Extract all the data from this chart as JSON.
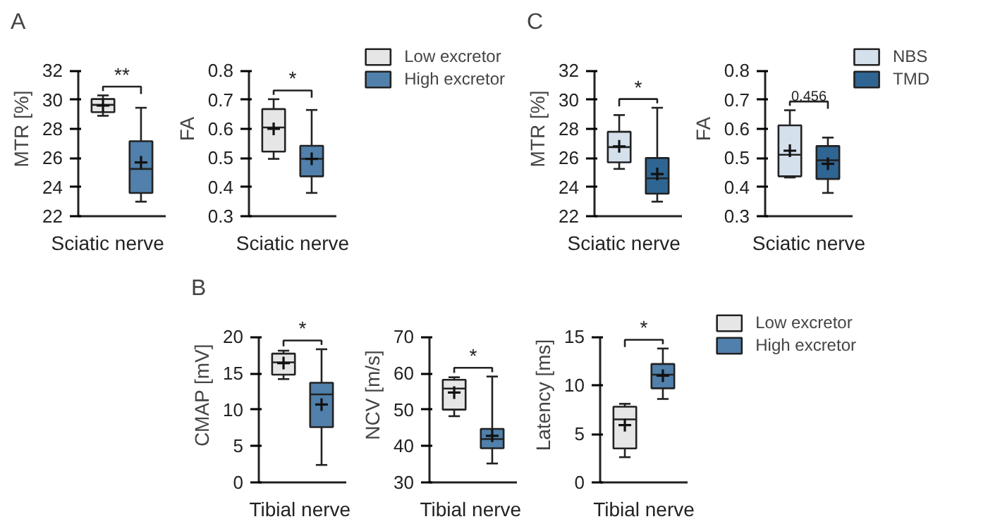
{
  "chart_data": [
    {
      "type": "box",
      "ylabel": "MTR [%]",
      "categories": [
        "Sciatic nerve"
      ],
      "ylim": [
        22,
        32
      ],
      "yticks": [
        22,
        24,
        26,
        28,
        30,
        32
      ],
      "grid": false,
      "annotations": [
        "A",
        "**"
      ],
      "series": [
        {
          "color": "#e6e6e6",
          "boxes": [
            {
              "low": 28.9,
              "q1": 29.15,
              "median": 29.65,
              "q3": 30.05,
              "high": 30.3,
              "mean": 29.6
            }
          ]
        },
        {
          "color": "#5080ab",
          "boxes": [
            {
              "low": 23.0,
              "q1": 23.6,
              "median": 25.25,
              "q3": 27.15,
              "high": 29.45,
              "mean": 25.7
            }
          ]
        }
      ]
    },
    {
      "type": "box",
      "ylabel": "FA",
      "categories": [
        "Sciatic nerve"
      ],
      "ylim": [
        0.3,
        0.8
      ],
      "yticks": [
        0.3,
        0.4,
        0.5,
        0.6,
        0.7,
        0.8
      ],
      "grid": false,
      "legend": "right",
      "annotations": [
        "*"
      ],
      "series": [
        {
          "name": "Low excretor",
          "color": "#e6e6e6",
          "boxes": [
            {
              "low": 0.497,
              "q1": 0.522,
              "median": 0.605,
              "q3": 0.668,
              "high": 0.702,
              "mean": 0.6
            }
          ]
        },
        {
          "name": "High excretor",
          "color": "#5080ab",
          "boxes": [
            {
              "low": 0.38,
              "q1": 0.437,
              "median": 0.497,
              "q3": 0.542,
              "high": 0.665,
              "mean": 0.497
            }
          ]
        }
      ]
    },
    {
      "type": "box",
      "ylabel": "MTR [%]",
      "categories": [
        "Sciatic nerve"
      ],
      "ylim": [
        22,
        32
      ],
      "yticks": [
        22,
        24,
        26,
        28,
        30,
        32
      ],
      "grid": false,
      "annotations": [
        "C",
        "*"
      ],
      "series": [
        {
          "color": "#d4e0ec",
          "boxes": [
            {
              "low": 25.25,
              "q1": 25.7,
              "median": 26.75,
              "q3": 27.8,
              "high": 28.95,
              "mean": 26.8
            }
          ]
        },
        {
          "color": "#2f6592",
          "boxes": [
            {
              "low": 23.0,
              "q1": 23.55,
              "median": 24.6,
              "q3": 26.0,
              "high": 29.45,
              "mean": 24.9
            }
          ]
        }
      ]
    },
    {
      "type": "box",
      "ylabel": "FA",
      "categories": [
        "Sciatic nerve"
      ],
      "ylim": [
        0.3,
        0.8
      ],
      "yticks": [
        0.3,
        0.4,
        0.5,
        0.6,
        0.7,
        0.8
      ],
      "grid": false,
      "legend": "right",
      "annotations": [
        "0.456"
      ],
      "series": [
        {
          "name": "NBS",
          "color": "#d4e0ec",
          "boxes": [
            {
              "low": 0.433,
              "q1": 0.437,
              "median": 0.511,
              "q3": 0.612,
              "high": 0.664,
              "mean": 0.525
            }
          ]
        },
        {
          "name": "TMD",
          "color": "#2f6592",
          "boxes": [
            {
              "low": 0.38,
              "q1": 0.428,
              "median": 0.492,
              "q3": 0.541,
              "high": 0.57,
              "mean": 0.48
            }
          ]
        }
      ]
    },
    {
      "type": "box",
      "ylabel": "CMAP [mV]",
      "categories": [
        "Tibial nerve"
      ],
      "ylim": [
        0,
        20
      ],
      "yticks": [
        0,
        5,
        10,
        15,
        20
      ],
      "grid": false,
      "annotations": [
        "B",
        "*"
      ],
      "series": [
        {
          "color": "#e6e6e6",
          "boxes": [
            {
              "low": 14.2,
              "q1": 14.8,
              "median": 16.5,
              "q3": 17.7,
              "high": 18.1,
              "mean": 16.4
            }
          ]
        },
        {
          "color": "#5080ab",
          "boxes": [
            {
              "low": 2.4,
              "q1": 7.6,
              "median": 12.1,
              "q3": 13.7,
              "high": 18.3,
              "mean": 10.7
            }
          ]
        }
      ]
    },
    {
      "type": "box",
      "ylabel": "NCV [m/s]",
      "categories": [
        "Tibial nerve"
      ],
      "ylim": [
        30,
        70
      ],
      "yticks": [
        30,
        40,
        50,
        60,
        70
      ],
      "grid": false,
      "annotations": [
        "*"
      ],
      "series": [
        {
          "color": "#e6e6e6",
          "boxes": [
            {
              "low": 48.2,
              "q1": 50.0,
              "median": 55.8,
              "q3": 58.2,
              "high": 58.9,
              "mean": 54.7
            }
          ]
        },
        {
          "color": "#5080ab",
          "boxes": [
            {
              "low": 35.2,
              "q1": 39.4,
              "median": 41.9,
              "q3": 44.7,
              "high": 59.1,
              "mean": 42.8
            }
          ]
        }
      ]
    },
    {
      "type": "box",
      "ylabel": "Latency [ms]",
      "categories": [
        "Tibial nerve"
      ],
      "ylim": [
        0,
        15
      ],
      "yticks": [
        0,
        5,
        10,
        15
      ],
      "grid": false,
      "legend": "right",
      "annotations": [
        "*"
      ],
      "series": [
        {
          "name": "Low excretor",
          "color": "#e6e6e6",
          "boxes": [
            {
              "low": 2.6,
              "q1": 3.5,
              "median": 6.5,
              "q3": 7.8,
              "high": 8.1,
              "mean": 5.9
            }
          ]
        },
        {
          "name": "High excretor",
          "color": "#5080ab",
          "boxes": [
            {
              "low": 8.6,
              "q1": 9.7,
              "median": 11.1,
              "q3": 12.2,
              "high": 13.8,
              "mean": 11.0
            }
          ]
        }
      ]
    }
  ]
}
